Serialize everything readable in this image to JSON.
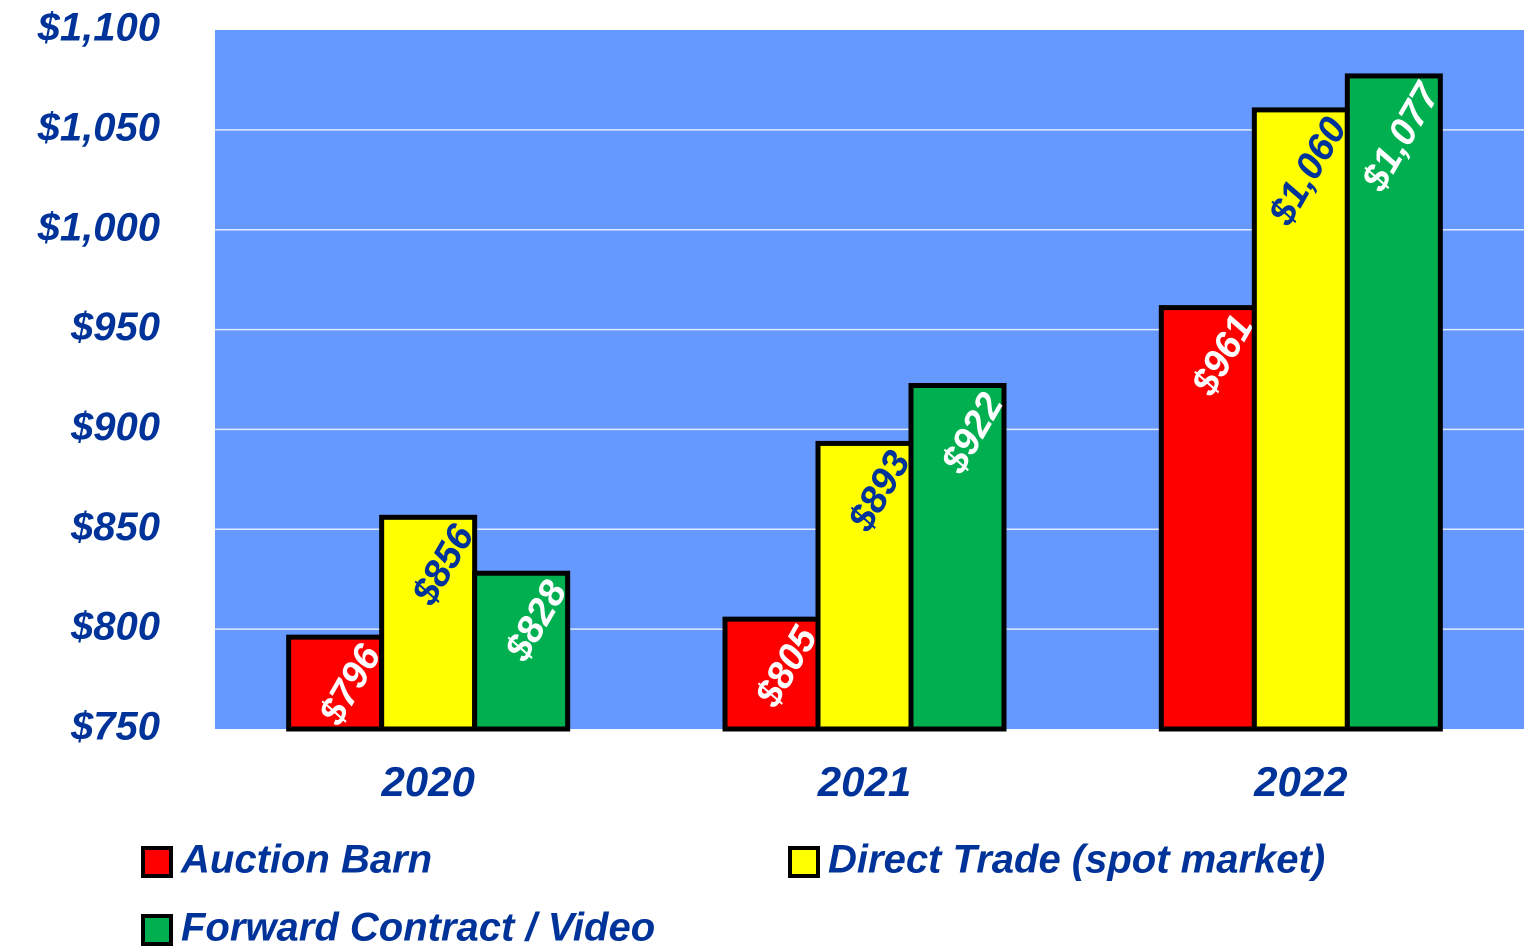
{
  "chart_data": {
    "type": "bar",
    "categories": [
      "2020",
      "2021",
      "2022"
    ],
    "series": [
      {
        "name": "Auction Barn",
        "color": "#ff0000",
        "label_color": "#ffffff",
        "values": [
          796,
          805,
          961
        ],
        "value_labels": [
          "$796",
          "$805",
          "$961"
        ]
      },
      {
        "name": "Direct Trade (spot market)",
        "color": "#ffff00",
        "label_color": "#003399",
        "values": [
          856,
          893,
          1060
        ],
        "value_labels": [
          "$856",
          "$893",
          "$1,060"
        ]
      },
      {
        "name": "Forward Contract / Video",
        "color": "#00b050",
        "label_color": "#ffffff",
        "values": [
          828,
          922,
          1077
        ],
        "value_labels": [
          "$828",
          "$922",
          "$1,077"
        ]
      }
    ],
    "ylim": [
      750,
      1100
    ],
    "yticks": [
      {
        "value": 750,
        "label": "$750"
      },
      {
        "value": 800,
        "label": "$800"
      },
      {
        "value": 850,
        "label": "$850"
      },
      {
        "value": 900,
        "label": "$900"
      },
      {
        "value": 950,
        "label": "$950"
      },
      {
        "value": 1000,
        "label": "$1,000"
      },
      {
        "value": 1050,
        "label": "$1,050"
      },
      {
        "value": 1100,
        "label": "$1,100"
      }
    ],
    "grid": true,
    "background": "#6699ff",
    "legend": "bottom"
  }
}
